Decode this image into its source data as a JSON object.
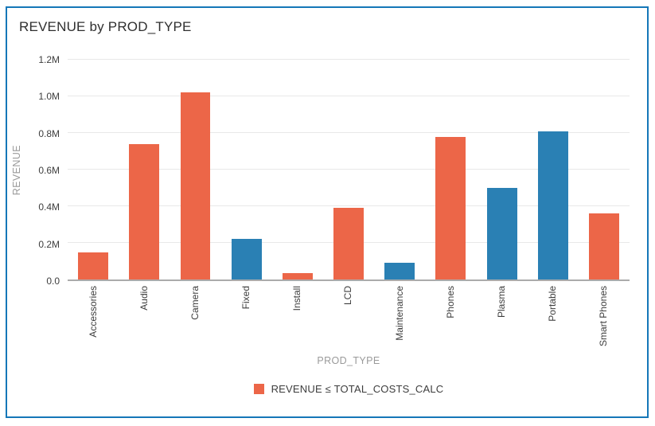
{
  "chart_data": {
    "type": "bar",
    "title": "REVENUE by PROD_TYPE",
    "xlabel": "PROD_TYPE",
    "ylabel": "REVENUE",
    "ylim": [
      0,
      1200000
    ],
    "grid": "horizontal",
    "yticks": [
      {
        "value": 0,
        "label": "0.0"
      },
      {
        "value": 200000,
        "label": "0.2M"
      },
      {
        "value": 400000,
        "label": "0.4M"
      },
      {
        "value": 600000,
        "label": "0.6M"
      },
      {
        "value": 800000,
        "label": "0.8M"
      },
      {
        "value": 1000000,
        "label": "1.0M"
      },
      {
        "value": 1200000,
        "label": "1.2M"
      }
    ],
    "categories": [
      "Accessories",
      "Audio",
      "Camera",
      "Fixed",
      "Install",
      "LCD",
      "Maintenance",
      "Phones",
      "Plasma",
      "Portable",
      "Smart Phones"
    ],
    "values": [
      150000,
      740000,
      1020000,
      220000,
      35000,
      390000,
      90000,
      780000,
      500000,
      810000,
      360000
    ],
    "highlighted": [
      true,
      true,
      true,
      false,
      true,
      true,
      false,
      true,
      false,
      false,
      true
    ],
    "colors": {
      "highlight": "#ec6648",
      "default": "#2a80b4",
      "card_border": "#1577b8",
      "gridline": "#e8e8e8",
      "axis_line": "#ababab"
    },
    "legend": {
      "position": "bottom-center",
      "label": "REVENUE ≤ TOTAL_COSTS_CALC",
      "swatch_color": "#ec6648"
    }
  }
}
